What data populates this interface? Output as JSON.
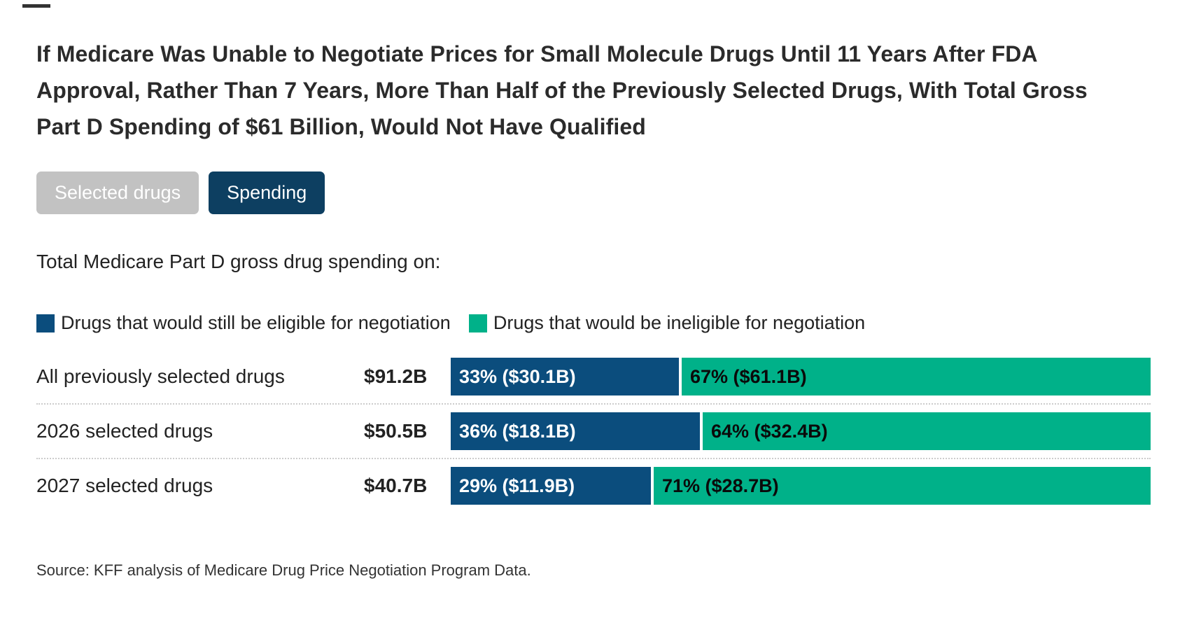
{
  "page": {
    "title": "If Medicare Was Unable to Negotiate Prices for Small Molecule Drugs Until 11 Years After FDA Approval, Rather Than 7 Years, More Than Half of the Previously Selected Drugs, With Total Gross Part D Spending of $61 Billion, Would Not Have Qualified",
    "subtitle": "Total Medicare Part D gross drug spending on:",
    "source": "Source: KFF analysis of Medicare Drug Price Negotiation Program Data."
  },
  "toggle": {
    "selected_drugs_label": "Selected drugs",
    "spending_label": "Spending",
    "active": "Spending"
  },
  "legend": {
    "eligible": {
      "label": "Drugs that would still be eligible for negotiation",
      "color": "#0b4d7d"
    },
    "ineligible": {
      "label": "Drugs that would be ineligible for negotiation",
      "color": "#00b189"
    }
  },
  "chart_data": {
    "type": "bar",
    "orientation": "horizontal",
    "stacked": true,
    "x_unit": "percent of total gross Part D spending",
    "xlim": [
      0,
      100
    ],
    "categories": [
      "All previously selected drugs",
      "2026 selected drugs",
      "2027 selected drugs"
    ],
    "totals": [
      "$91.2B",
      "$50.5B",
      "$40.7B"
    ],
    "series": [
      {
        "name": "Drugs that would still be eligible for negotiation",
        "color": "#0b4d7d",
        "values": [
          33,
          36,
          29
        ],
        "amounts": [
          "$30.1B",
          "$18.1B",
          "$11.9B"
        ]
      },
      {
        "name": "Drugs that would be ineligible for negotiation",
        "color": "#00b189",
        "values": [
          67,
          64,
          71
        ],
        "amounts": [
          "$61.1B",
          "$32.4B",
          "$28.7B"
        ]
      }
    ],
    "rows": [
      {
        "label": "All previously selected drugs",
        "total": "$91.2B",
        "eligible_pct": 33,
        "eligible_label": "33% ($30.1B)",
        "ineligible_pct": 67,
        "ineligible_label": "67% ($61.1B)"
      },
      {
        "label": "2026 selected drugs",
        "total": "$50.5B",
        "eligible_pct": 36,
        "eligible_label": "36% ($18.1B)",
        "ineligible_pct": 64,
        "ineligible_label": "64% ($32.4B)"
      },
      {
        "label": "2027 selected drugs",
        "total": "$40.7B",
        "eligible_pct": 29,
        "eligible_label": "29% ($11.9B)",
        "ineligible_pct": 71,
        "ineligible_label": "71% ($28.7B)"
      }
    ]
  }
}
